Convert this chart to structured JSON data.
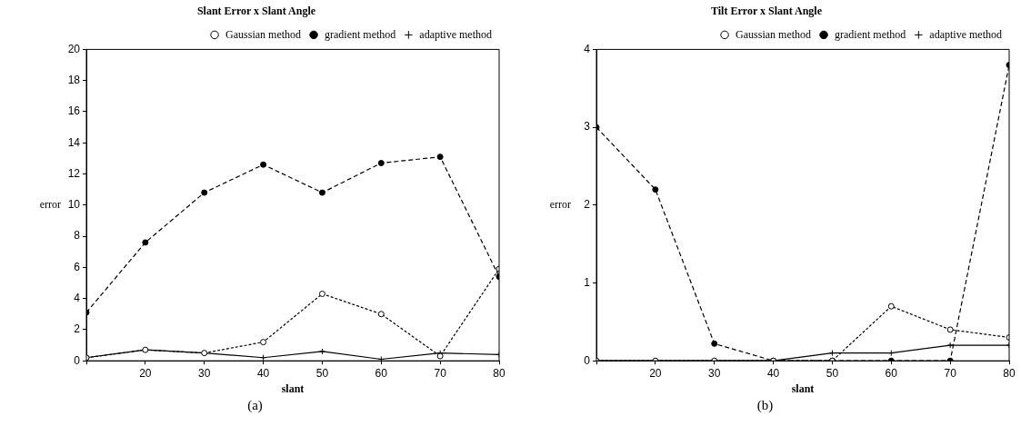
{
  "chart_data": [
    {
      "type": "line",
      "title": "Slant Error x Slant Angle",
      "xlabel": "slant",
      "ylabel": "error",
      "x": [
        10,
        20,
        30,
        40,
        50,
        60,
        70,
        80
      ],
      "series": [
        {
          "name": "Gaussian method",
          "color": "#000000",
          "marker": "circle",
          "line_style": "dotted",
          "values": [
            0.2,
            0.7,
            0.5,
            1.2,
            4.3,
            3.0,
            0.3,
            5.9
          ]
        },
        {
          "name": "gradient method",
          "color": "#000000",
          "marker": "circle",
          "line_style": "dashed",
          "values": [
            3.1,
            7.6,
            10.8,
            12.6,
            10.8,
            12.7,
            13.1,
            5.4
          ]
        },
        {
          "name": "adaptive method",
          "color": "#000000",
          "marker": "cross",
          "line_style": "solid",
          "values": [
            0.2,
            0.7,
            0.5,
            0.2,
            0.6,
            0.1,
            0.5,
            0.4
          ]
        }
      ],
      "xlim": [
        10,
        80
      ],
      "xticks": [
        {
          "value": 10,
          "label": null
        },
        20,
        30,
        40,
        50,
        60,
        70,
        80
      ],
      "ylim": [
        0,
        20
      ],
      "yticks": [
        0,
        2,
        4,
        6,
        8,
        10,
        12,
        14,
        16,
        18,
        20
      ],
      "grid": false,
      "legend": "top right",
      "annotations": [
        "(a)"
      ]
    },
    {
      "type": "line",
      "title": "Tilt Error x Slant Angle",
      "xlabel": "slant",
      "ylabel": "error",
      "x": [
        10,
        20,
        30,
        40,
        50,
        60,
        70,
        80
      ],
      "series": [
        {
          "name": "Gaussian method",
          "color": "#000000",
          "marker": "circle",
          "line_style": "dotted",
          "values": [
            0,
            0,
            0,
            0,
            0,
            0.7,
            0.4,
            0.3
          ]
        },
        {
          "name": "gradient method",
          "color": "#000000",
          "marker": "circle",
          "line_style": "dashed",
          "values": [
            3.0,
            2.2,
            0.22,
            0,
            0,
            0,
            0,
            3.8
          ]
        },
        {
          "name": "adaptive method",
          "color": "#000000",
          "marker": "cross",
          "line_style": "solid",
          "values": [
            0,
            0,
            0,
            0,
            0.1,
            0.1,
            0.2,
            0.2
          ]
        }
      ],
      "xlim": [
        10,
        80
      ],
      "xticks": [
        {
          "value": 10,
          "label": null
        },
        20,
        30,
        40,
        50,
        60,
        70,
        80
      ],
      "ylim": [
        0,
        4
      ],
      "yticks": [
        0,
        1,
        2,
        3,
        4
      ],
      "grid": false,
      "legend": "top right",
      "annotations": [
        "(b)"
      ]
    }
  ]
}
